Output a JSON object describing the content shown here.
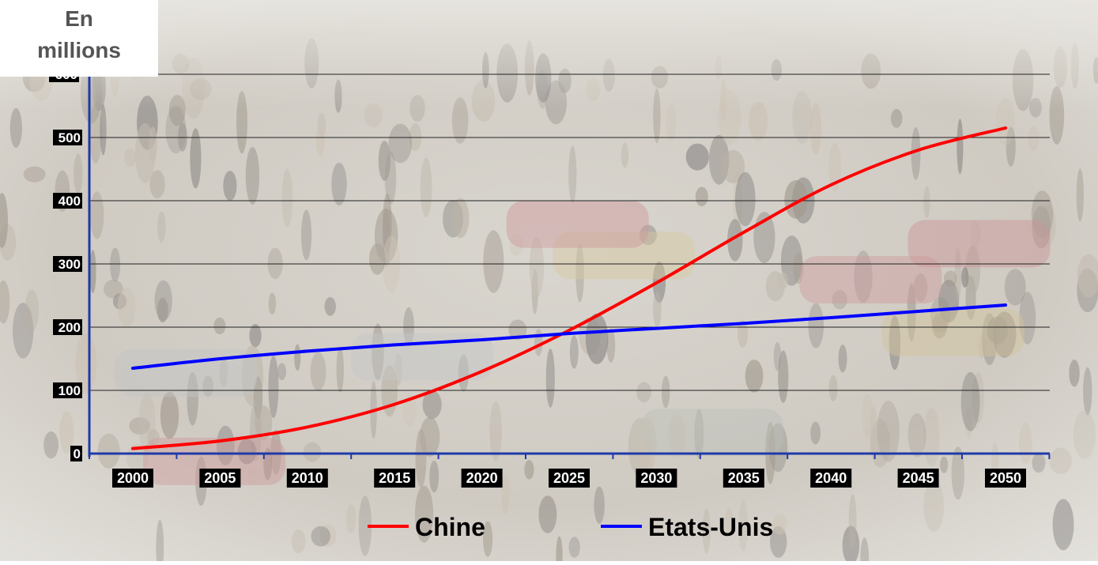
{
  "chart_data": {
    "type": "line",
    "title": "",
    "ylabel_lines": [
      "En",
      "millions"
    ],
    "xlabel": "",
    "x": [
      2000,
      2005,
      2010,
      2015,
      2020,
      2025,
      2030,
      2035,
      2040,
      2045,
      2050
    ],
    "ylim": [
      0,
      600
    ],
    "yticks": [
      0,
      100,
      200,
      300,
      400,
      500
    ],
    "grid": true,
    "legend_position": "bottom",
    "series": [
      {
        "name": "Chine",
        "color": "#ff0000",
        "values": [
          8,
          20,
          42,
          78,
          130,
          195,
          270,
          350,
          425,
          480,
          515
        ]
      },
      {
        "name": "Etats-Unis",
        "color": "#0000ff",
        "values": [
          135,
          150,
          162,
          172,
          180,
          190,
          198,
          206,
          215,
          225,
          235
        ]
      }
    ],
    "axis_color": "#1f3aa8",
    "tick_label_bg": "#000000",
    "tick_label_color": "#ffffff"
  }
}
